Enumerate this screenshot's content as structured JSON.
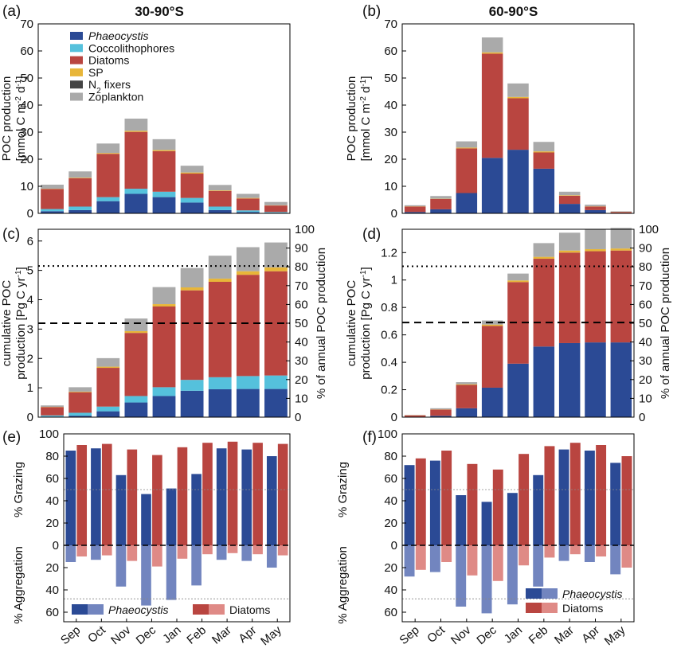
{
  "figure": {
    "colors": {
      "phaeocystis": "#2b4a95",
      "phaeocystis_light": "#7285bf",
      "coccolithophores": "#55c1dc",
      "diatoms": "#b94540",
      "diatoms_light": "#df8a86",
      "sp": "#e8b639",
      "n2fixers": "#444444",
      "zooplankton": "#aaaaaa"
    },
    "legend": [
      {
        "key": "phaeocystis",
        "label": "Phaeocystis",
        "italic": true
      },
      {
        "key": "coccolithophores",
        "label": "Coccolithophores"
      },
      {
        "key": "diatoms",
        "label": "Diatoms"
      },
      {
        "key": "sp",
        "label": "SP"
      },
      {
        "key": "n2fixers",
        "label": "N₂ fixers"
      },
      {
        "key": "zooplankton",
        "label": "Zoplankton"
      }
    ],
    "legend_bottom": [
      {
        "key": "phaeocystis",
        "label": "Phaeocystis",
        "italic": true
      },
      {
        "key": "diatoms",
        "label": "Diatoms"
      }
    ],
    "months": [
      "Sep",
      "Oct",
      "Nov",
      "Dec",
      "Jan",
      "Feb",
      "Mar",
      "Apr",
      "May"
    ]
  },
  "chart_data": [
    {
      "panel": "(a)",
      "title": "30-90°S",
      "type": "bar",
      "stacked": true,
      "ylabel": "POC production [mmol C m⁻² d⁻¹]",
      "ylim": [
        0,
        70
      ],
      "yticks": [
        0,
        10,
        20,
        30,
        40,
        50,
        60,
        70
      ],
      "categories": [
        "Sep",
        "Oct",
        "Nov",
        "Dec",
        "Jan",
        "Feb",
        "Mar",
        "Apr",
        "May"
      ],
      "series": [
        {
          "name": "Phaeocystis",
          "color": "phaeocystis",
          "values": [
            0.8,
            1.2,
            4.5,
            7.2,
            6.0,
            4.0,
            1.2,
            0.5,
            0.2
          ]
        },
        {
          "name": "Coccolithophores",
          "color": "coccolithophores",
          "values": [
            0.8,
            1.3,
            1.5,
            1.9,
            2.0,
            1.7,
            1.3,
            0.6,
            0.3
          ]
        },
        {
          "name": "Diatoms",
          "color": "diatoms",
          "values": [
            7.4,
            10.5,
            16.0,
            21.0,
            15.0,
            9.0,
            5.8,
            4.4,
            2.4
          ]
        },
        {
          "name": "SP",
          "color": "sp",
          "values": [
            0.1,
            0.2,
            0.3,
            0.4,
            0.4,
            0.4,
            0.2,
            0.2,
            0.1
          ]
        },
        {
          "name": "N₂ fixers",
          "color": "n2fixers",
          "values": [
            0,
            0,
            0,
            0,
            0,
            0,
            0,
            0,
            0
          ]
        },
        {
          "name": "Zoplankton",
          "color": "zooplankton",
          "values": [
            1.5,
            2.3,
            3.5,
            4.5,
            4.0,
            2.5,
            2.0,
            1.5,
            1.2
          ]
        }
      ]
    },
    {
      "panel": "(b)",
      "title": "60-90°S",
      "type": "bar",
      "stacked": true,
      "ylabel": "POC production [mmol C m⁻² d⁻¹]",
      "ylim": [
        0,
        70
      ],
      "yticks": [
        0,
        10,
        20,
        30,
        40,
        50,
        60,
        70
      ],
      "categories": [
        "Sep",
        "Oct",
        "Nov",
        "Dec",
        "Jan",
        "Feb",
        "Mar",
        "Apr",
        "May"
      ],
      "series": [
        {
          "name": "Phaeocystis",
          "color": "phaeocystis",
          "values": [
            0.5,
            1.5,
            7.5,
            20.5,
            23.5,
            16.5,
            3.5,
            1.2,
            0.1
          ]
        },
        {
          "name": "Coccolithophores",
          "color": "coccolithophores",
          "values": [
            0,
            0,
            0,
            0,
            0,
            0,
            0,
            0,
            0
          ]
        },
        {
          "name": "Diatoms",
          "color": "diatoms",
          "values": [
            2.0,
            3.8,
            16.5,
            38.5,
            19.0,
            6.0,
            3.0,
            1.3,
            0.4
          ]
        },
        {
          "name": "SP",
          "color": "sp",
          "values": [
            0.1,
            0.1,
            0.3,
            0.5,
            0.5,
            0.4,
            0.2,
            0.1,
            0.05
          ]
        },
        {
          "name": "N₂ fixers",
          "color": "n2fixers",
          "values": [
            0,
            0,
            0,
            0,
            0,
            0,
            0,
            0,
            0
          ]
        },
        {
          "name": "Zoplankton",
          "color": "zooplankton",
          "values": [
            0.4,
            1.0,
            2.3,
            5.5,
            5.0,
            3.5,
            1.3,
            0.6,
            0.2
          ]
        }
      ]
    },
    {
      "panel": "(c)",
      "type": "bar",
      "stacked": true,
      "cumulative": true,
      "ylabel": "cumulative POC production [Pg C yr⁻¹]",
      "y2label": "% of annual POC production",
      "ylim": [
        0,
        6.4
      ],
      "yticks": [
        0,
        1,
        2,
        3,
        4,
        5,
        6
      ],
      "y2max": 6.4,
      "y2ticks": [
        0,
        10,
        20,
        30,
        40,
        50,
        60,
        70,
        80,
        90,
        100
      ],
      "annual_total": 6.4,
      "hlines": [
        {
          "y": 3.2,
          "style": "dashed",
          "label": "50%"
        },
        {
          "y": 5.15,
          "style": "dotted",
          "label": "80%"
        }
      ],
      "categories": [
        "Sep",
        "Oct",
        "Nov",
        "Dec",
        "Jan",
        "Feb",
        "Mar",
        "Apr",
        "May"
      ],
      "series": [
        {
          "name": "Phaeocystis",
          "color": "phaeocystis",
          "values": [
            0.02,
            0.05,
            0.2,
            0.5,
            0.72,
            0.9,
            0.95,
            0.96,
            0.96
          ]
        },
        {
          "name": "Coccolithophores",
          "color": "coccolithophores",
          "values": [
            0.04,
            0.1,
            0.16,
            0.22,
            0.3,
            0.37,
            0.41,
            0.44,
            0.46
          ]
        },
        {
          "name": "Diatoms",
          "color": "diatoms",
          "values": [
            0.28,
            0.7,
            1.32,
            2.15,
            2.75,
            3.05,
            3.25,
            3.45,
            3.55
          ]
        },
        {
          "name": "SP",
          "color": "sp",
          "values": [
            0.01,
            0.02,
            0.04,
            0.06,
            0.08,
            0.1,
            0.11,
            0.12,
            0.13
          ]
        },
        {
          "name": "N₂ fixers",
          "color": "n2fixers",
          "values": [
            0,
            0,
            0,
            0,
            0,
            0,
            0,
            0,
            0
          ]
        },
        {
          "name": "Zoplankton",
          "color": "zooplankton",
          "values": [
            0.05,
            0.15,
            0.29,
            0.43,
            0.58,
            0.66,
            0.78,
            0.82,
            0.85
          ]
        }
      ]
    },
    {
      "panel": "(d)",
      "type": "bar",
      "stacked": true,
      "cumulative": true,
      "ylabel": "cumulative POC production [Pg C yr⁻¹]",
      "y2label": "% of annual POC production",
      "ylim": [
        0,
        1.37
      ],
      "yticks": [
        0,
        0.2,
        0.4,
        0.6,
        0.8,
        1,
        1.2
      ],
      "y2max": 1.37,
      "y2ticks": [
        0,
        10,
        20,
        30,
        40,
        50,
        60,
        70,
        80,
        90,
        100
      ],
      "annual_total": 1.37,
      "hlines": [
        {
          "y": 0.69,
          "style": "dashed",
          "label": "50%"
        },
        {
          "y": 1.1,
          "style": "dotted",
          "label": "80%"
        }
      ],
      "categories": [
        "Sep",
        "Oct",
        "Nov",
        "Dec",
        "Jan",
        "Feb",
        "Mar",
        "Apr",
        "May"
      ],
      "series": [
        {
          "name": "Phaeocystis",
          "color": "phaeocystis",
          "values": [
            0.003,
            0.01,
            0.065,
            0.215,
            0.39,
            0.515,
            0.54,
            0.545,
            0.545
          ]
        },
        {
          "name": "Coccolithophores",
          "color": "coccolithophores",
          "values": [
            0,
            0,
            0,
            0,
            0,
            0,
            0,
            0,
            0
          ]
        },
        {
          "name": "Diatoms",
          "color": "diatoms",
          "values": [
            0.01,
            0.045,
            0.17,
            0.45,
            0.595,
            0.64,
            0.66,
            0.665,
            0.67
          ]
        },
        {
          "name": "SP",
          "color": "sp",
          "values": [
            0.001,
            0.002,
            0.005,
            0.01,
            0.012,
            0.014,
            0.015,
            0.015,
            0.015
          ]
        },
        {
          "name": "N₂ fixers",
          "color": "n2fixers",
          "values": [
            0,
            0,
            0,
            0,
            0,
            0,
            0,
            0,
            0
          ]
        },
        {
          "name": "Zoplankton",
          "color": "zooplankton",
          "values": [
            0.002,
            0.008,
            0.015,
            0.03,
            0.05,
            0.1,
            0.13,
            0.145,
            0.15
          ]
        }
      ]
    },
    {
      "panel": "(e)",
      "type": "bar",
      "grouped": true,
      "diverging": true,
      "ylabel_top": "% Grazing",
      "ylabel_bottom": "% Aggregation",
      "yticks_top": [
        0,
        20,
        40,
        60,
        80,
        100
      ],
      "yticks_bottom": [
        20,
        40,
        60
      ],
      "ref_top": 50,
      "ref_bottom": 48,
      "categories": [
        "Sep",
        "Oct",
        "Nov",
        "Dec",
        "Jan",
        "Feb",
        "Mar",
        "Apr",
        "May"
      ],
      "series": [
        {
          "name": "Phaeocystis",
          "color": "phaeocystis",
          "color_light": "phaeocystis_light",
          "grazing": [
            85,
            87,
            63,
            46,
            51,
            64,
            87,
            86,
            80
          ],
          "aggregation": [
            15,
            13,
            37,
            54,
            49,
            36,
            13,
            14,
            20
          ]
        },
        {
          "name": "Diatoms",
          "color": "diatoms",
          "color_light": "diatoms_light",
          "grazing": [
            90,
            91,
            86,
            81,
            88,
            92,
            93,
            92,
            91
          ],
          "aggregation": [
            10,
            9,
            14,
            19,
            12,
            8,
            7,
            8,
            9
          ]
        }
      ]
    },
    {
      "panel": "(f)",
      "type": "bar",
      "grouped": true,
      "diverging": true,
      "ylabel_top": "% Grazing",
      "ylabel_bottom": "% Aggregation",
      "yticks_top": [
        0,
        20,
        40,
        60,
        80,
        100
      ],
      "yticks_bottom": [
        20,
        40,
        60
      ],
      "ref_top": 50,
      "ref_bottom": 48,
      "categories": [
        "Sep",
        "Oct",
        "Nov",
        "Dec",
        "Jan",
        "Feb",
        "Mar",
        "Apr",
        "May"
      ],
      "series": [
        {
          "name": "Phaeocystis",
          "color": "phaeocystis",
          "color_light": "phaeocystis_light",
          "grazing": [
            72,
            76,
            45,
            39,
            47,
            63,
            86,
            85,
            74
          ],
          "aggregation": [
            28,
            24,
            55,
            61,
            53,
            37,
            14,
            15,
            26
          ]
        },
        {
          "name": "Diatoms",
          "color": "diatoms",
          "color_light": "diatoms_light",
          "grazing": [
            78,
            85,
            73,
            68,
            82,
            89,
            92,
            90,
            80
          ],
          "aggregation": [
            22,
            15,
            27,
            32,
            18,
            11,
            8,
            10,
            20
          ]
        }
      ]
    }
  ]
}
